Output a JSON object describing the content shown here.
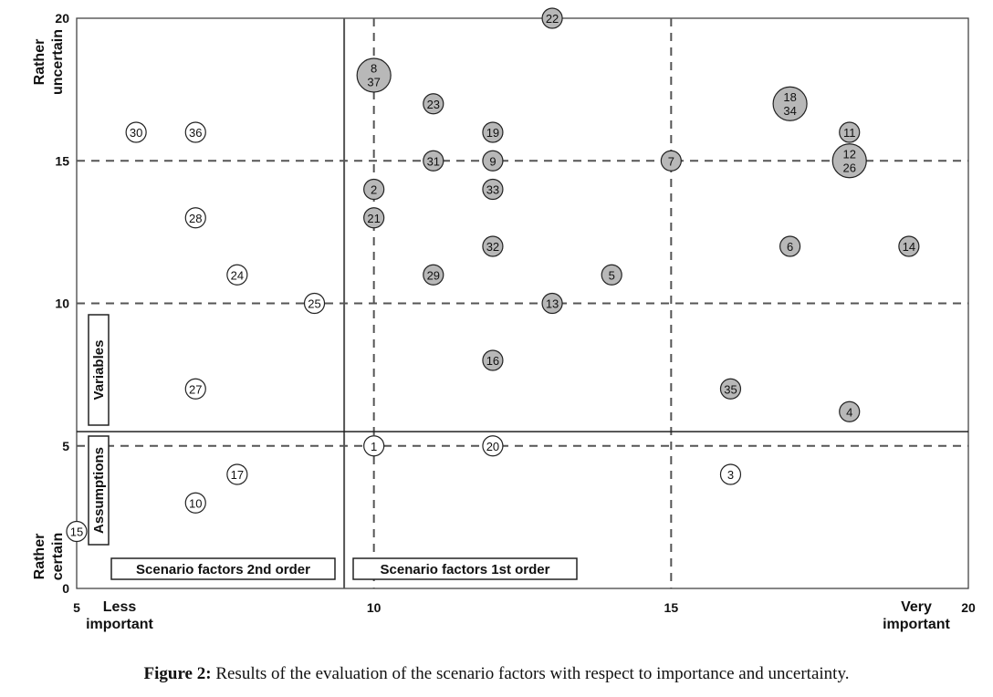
{
  "caption": {
    "label": "Figure 2:",
    "text": "Results of the evaluation of the scenario factors with respect to importance and uncertainty."
  },
  "chart_data": {
    "type": "scatter",
    "xlim": [
      5,
      20
    ],
    "ylim": [
      0,
      20
    ],
    "x_ticks": [
      5,
      10,
      15,
      20
    ],
    "y_ticks": [
      0,
      5,
      10,
      15,
      20
    ],
    "x_end_labels": {
      "low": "Less important",
      "high": "Very important"
    },
    "y_end_labels": {
      "low": "Rather certain",
      "high": "Rather uncertain"
    },
    "grid": "dashed lines at x=10, x=15, y=5, y=10, y=15",
    "dividers": {
      "x": 9.5,
      "y": 5.5
    },
    "region_labels": {
      "variables": "Variables",
      "assumptions": "Assumptions",
      "second_order": "Scenario factors 2nd order",
      "first_order": "Scenario factors 1st order"
    },
    "colors": {
      "filled": "#b8b8b8",
      "open": "#ffffff",
      "line": "#555555"
    },
    "points": [
      {
        "label": "1",
        "x": 10,
        "y": 5,
        "filled": false
      },
      {
        "label": "2",
        "x": 10,
        "y": 14,
        "filled": true
      },
      {
        "label": "3",
        "x": 16,
        "y": 4,
        "filled": false
      },
      {
        "label": "4",
        "x": 18,
        "y": 6.2,
        "filled": true
      },
      {
        "label": "5",
        "x": 14,
        "y": 11,
        "filled": true
      },
      {
        "label": "6",
        "x": 17,
        "y": 12,
        "filled": true
      },
      {
        "label": "7",
        "x": 15,
        "y": 15,
        "filled": true
      },
      {
        "label": "8",
        "x": 10,
        "y": 18,
        "filled": true
      },
      {
        "label": "37",
        "x": 10,
        "y": 18,
        "filled": true
      },
      {
        "label": "9",
        "x": 12,
        "y": 15,
        "filled": true
      },
      {
        "label": "10",
        "x": 7,
        "y": 3,
        "filled": false
      },
      {
        "label": "11",
        "x": 18,
        "y": 16,
        "filled": true
      },
      {
        "label": "12",
        "x": 18,
        "y": 15,
        "filled": true
      },
      {
        "label": "26",
        "x": 18,
        "y": 15,
        "filled": true
      },
      {
        "label": "13",
        "x": 13,
        "y": 10,
        "filled": true
      },
      {
        "label": "14",
        "x": 19,
        "y": 12,
        "filled": true
      },
      {
        "label": "15",
        "x": 5,
        "y": 2,
        "filled": false
      },
      {
        "label": "16",
        "x": 12,
        "y": 8,
        "filled": true
      },
      {
        "label": "17",
        "x": 7.7,
        "y": 4,
        "filled": false
      },
      {
        "label": "18",
        "x": 17,
        "y": 17,
        "filled": true
      },
      {
        "label": "34",
        "x": 17,
        "y": 17,
        "filled": true
      },
      {
        "label": "19",
        "x": 12,
        "y": 16,
        "filled": true
      },
      {
        "label": "20",
        "x": 12,
        "y": 5,
        "filled": false
      },
      {
        "label": "21",
        "x": 10,
        "y": 13,
        "filled": true
      },
      {
        "label": "22",
        "x": 13,
        "y": 20,
        "filled": true
      },
      {
        "label": "23",
        "x": 11,
        "y": 17,
        "filled": true
      },
      {
        "label": "24",
        "x": 7.7,
        "y": 11,
        "filled": false
      },
      {
        "label": "25",
        "x": 9,
        "y": 10,
        "filled": false
      },
      {
        "label": "27",
        "x": 7,
        "y": 7,
        "filled": false
      },
      {
        "label": "28",
        "x": 7,
        "y": 13,
        "filled": false
      },
      {
        "label": "29",
        "x": 11,
        "y": 11,
        "filled": true
      },
      {
        "label": "30",
        "x": 6,
        "y": 16,
        "filled": false
      },
      {
        "label": "31",
        "x": 11,
        "y": 15,
        "filled": true
      },
      {
        "label": "32",
        "x": 12,
        "y": 12,
        "filled": true
      },
      {
        "label": "33",
        "x": 12,
        "y": 14,
        "filled": true
      },
      {
        "label": "35",
        "x": 16,
        "y": 7,
        "filled": true
      },
      {
        "label": "36",
        "x": 7,
        "y": 16,
        "filled": false
      }
    ]
  }
}
